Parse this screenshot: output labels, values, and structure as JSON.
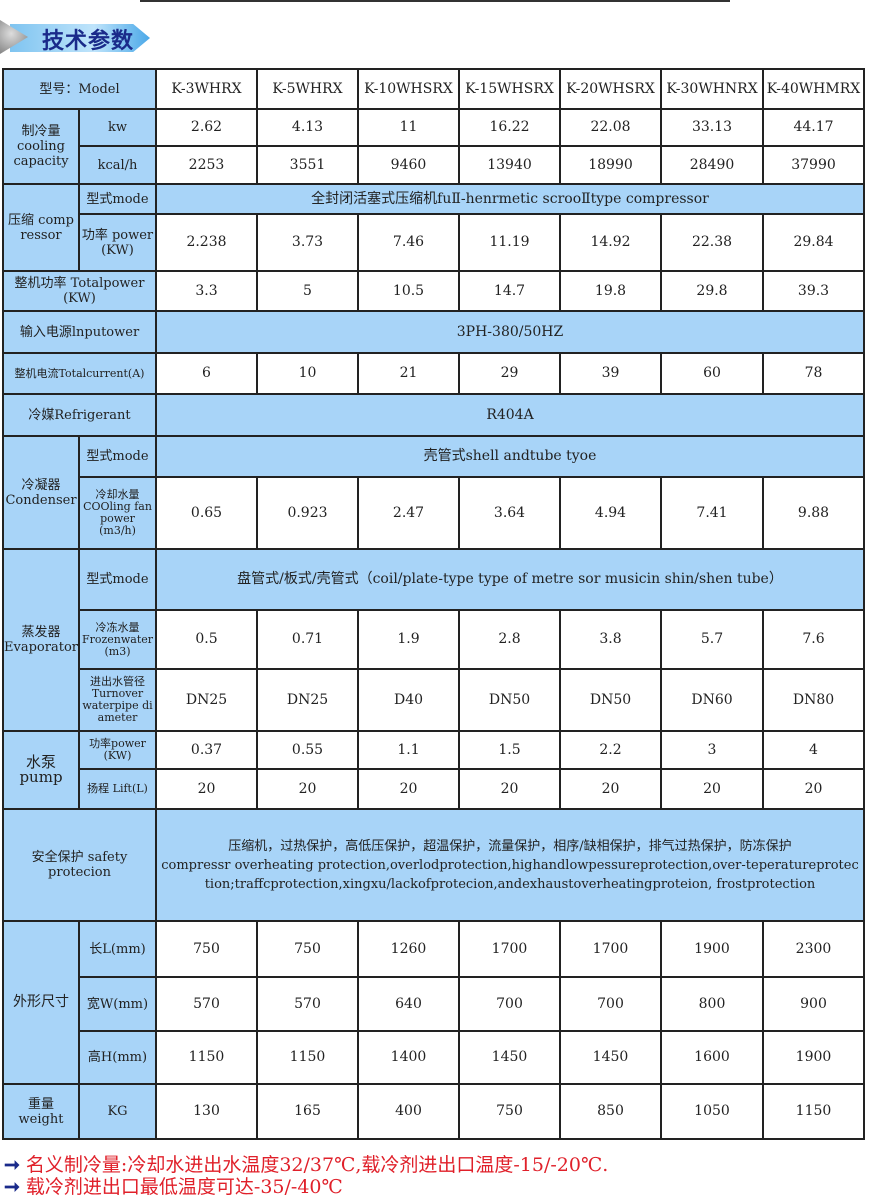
{
  "title": "技术参数",
  "models": [
    "K-3WHRX",
    "K-5WHRX",
    "K-10WHSRX",
    "K-15WHSRX",
    "K-20WHSRX",
    "K-30WHNRX",
    "K-40WHMRX"
  ],
  "labels": {
    "model": "型号：Model",
    "cooling": "制冷量 cooling capacity",
    "kw": "kw",
    "kcal": "kcal/h",
    "compressor": "压缩 comp ressor",
    "mode": "型式mode",
    "comp_power": "功率 power (KW)",
    "total_power": "整机功率 Totalpower (KW)",
    "input": "输入电源lnputower",
    "current": "整机电流Totalcurrent(A)",
    "refrigerant": "冷媒Refrigerant",
    "condenser": "冷凝器 Condenser",
    "cond_mode": "型式mode",
    "cond_water": "冷却水量 COOling fan power (m3/h)",
    "evaporator": "蒸发器 Evaporator",
    "evap_mode": "型式mode",
    "frozen": "冷冻水量 Frozenwater (m3)",
    "pipe": "进出水管径 Turnover waterpipe di ameter",
    "pump": "水泵 pump",
    "pump_power": "功率power (KW)",
    "lift": "扬程 Lift(L)",
    "safety": "安全保护 safety protecion",
    "dims": "外形尺寸",
    "L": "长L(mm)",
    "W": "宽W(mm)",
    "H": "高H(mm)",
    "weight": "重量 weight",
    "kg": "KG"
  },
  "spans": {
    "compressor_mode": "全封闭活塞式压缩机fuⅡ-henrmetic scrooⅡtype compressor",
    "input": "3PH-380/50HZ",
    "refrigerant": "R404A",
    "condenser_mode": "壳管式shell andtube tyoe",
    "evaporator_mode": "盘管式/板式/壳管式（coil/plate-type type of metre sor musicin shin/shen tube）",
    "safety_cn": "压缩机，过热保护，高低压保护，超温保护，流量保护，相序/缺相保护，排气过热保护，防冻保护",
    "safety_en": "compressr overheating protection,overlodprotection,highandlowpessureprotection,over-teperatureprotection;traffcprotection,xingxu/lackofprotecion,andexhaustoverheatingproteion,     frostprotection"
  },
  "values": {
    "kw": [
      "2.62",
      "4.13",
      "11",
      "16.22",
      "22.08",
      "33.13",
      "44.17"
    ],
    "kcal": [
      "2253",
      "3551",
      "9460",
      "13940",
      "18990",
      "28490",
      "37990"
    ],
    "comp_power": [
      "2.238",
      "3.73",
      "7.46",
      "11.19",
      "14.92",
      "22.38",
      "29.84"
    ],
    "total_power": [
      "3.3",
      "5",
      "10.5",
      "14.7",
      "19.8",
      "29.8",
      "39.3"
    ],
    "current": [
      "6",
      "10",
      "21",
      "29",
      "39",
      "60",
      "78"
    ],
    "cond_water": [
      "0.65",
      "0.923",
      "2.47",
      "3.64",
      "4.94",
      "7.41",
      "9.88"
    ],
    "frozen": [
      "0.5",
      "0.71",
      "1.9",
      "2.8",
      "3.8",
      "5.7",
      "7.6"
    ],
    "pipe": [
      "DN25",
      "DN25",
      "D40",
      "DN50",
      "DN50",
      "DN60",
      "DN80"
    ],
    "pump_power": [
      "0.37",
      "0.55",
      "1.1",
      "1.5",
      "2.2",
      "3",
      "4"
    ],
    "lift": [
      "20",
      "20",
      "20",
      "20",
      "20",
      "20",
      "20"
    ],
    "L": [
      "750",
      "750",
      "1260",
      "1700",
      "1700",
      "1900",
      "2300"
    ],
    "W": [
      "570",
      "570",
      "640",
      "700",
      "700",
      "800",
      "900"
    ],
    "H": [
      "1150",
      "1150",
      "1400",
      "1450",
      "1450",
      "1600",
      "1900"
    ],
    "kg": [
      "130",
      "165",
      "400",
      "750",
      "850",
      "1050",
      "1150"
    ]
  },
  "footnotes": [
    "名义制冷量:冷却水进出水温度32/37℃,载冷剂进出口温度-15/-20℃.",
    "载冷剂进出口最低温度可达-35/-40℃"
  ],
  "colors": {
    "header_blue": "#a8d4f8",
    "footnote_red": "#e0202a",
    "title_navy": "#1a2a8a"
  }
}
